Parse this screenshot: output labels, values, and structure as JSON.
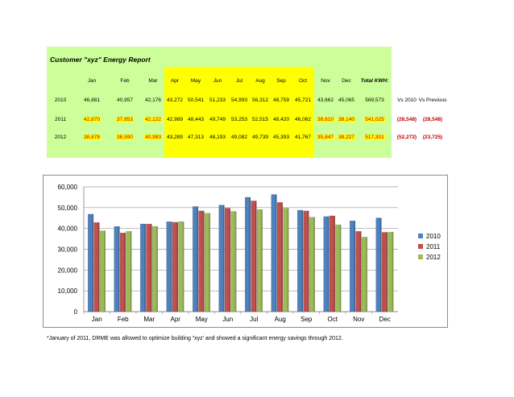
{
  "report": {
    "title": "Customer \"xyz\" Energy Report",
    "months": [
      "Jan",
      "Feb",
      "Mar",
      "Apr",
      "May",
      "Jun",
      "Jul",
      "Aug",
      "Sep",
      "Oct",
      "Nov",
      "Dec"
    ],
    "total_header": "Total KWH:",
    "rows": [
      {
        "year": "2010",
        "values": [
          "46,881",
          "40,957",
          "42,176",
          "43,272",
          "50,541",
          "51,233",
          "54,993",
          "56,312",
          "48,759",
          "45,721",
          "43,662",
          "45,065"
        ],
        "total": "569,573",
        "extra1": "Vs 2010",
        "extra2": "Vs Previous"
      },
      {
        "year": "2011",
        "values": [
          "42,870",
          "37,853",
          "42,122",
          "42,989",
          "48,443",
          "49,749",
          "53,253",
          "52,515",
          "48,420",
          "46,062",
          "38,610",
          "38,140"
        ],
        "total": "541,025",
        "extra1": "(28,548)",
        "extra2": "(28,548)"
      },
      {
        "year": "2012",
        "values": [
          "38,878",
          "38,590",
          "40,983",
          "43,289",
          "47,313",
          "48,193",
          "49,082",
          "49,739",
          "45,393",
          "41,767",
          "35,847",
          "38,227"
        ],
        "total": "517,301",
        "extra1": "(52,272)",
        "extra2": "(23,725)"
      }
    ]
  },
  "colors": {
    "s2010": "#4f81bd",
    "s2011": "#c0504d",
    "s2012": "#9bbb59",
    "panel_green": "#ccff99",
    "panel_yellow": "#ffff00",
    "negative": "#c00000"
  },
  "chart_data": {
    "type": "bar",
    "categories": [
      "Jan",
      "Feb",
      "Mar",
      "Apr",
      "May",
      "Jun",
      "Jul",
      "Aug",
      "Sep",
      "Oct",
      "Nov",
      "Dec"
    ],
    "series": [
      {
        "name": "2010",
        "values": [
          46881,
          40957,
          42176,
          43272,
          50541,
          51233,
          54993,
          56312,
          48759,
          45721,
          43662,
          45065
        ]
      },
      {
        "name": "2011",
        "values": [
          42870,
          37853,
          42122,
          42989,
          48443,
          49749,
          53253,
          52515,
          48420,
          46062,
          38610,
          38140
        ]
      },
      {
        "name": "2012",
        "values": [
          38878,
          38590,
          40983,
          43289,
          47313,
          48193,
          49082,
          49739,
          45393,
          41767,
          35847,
          38227
        ]
      }
    ],
    "ylim": [
      0,
      60000
    ],
    "yticks": [
      "0",
      "10,000",
      "20,000",
      "30,000",
      "40,000",
      "50,000",
      "60,000"
    ],
    "grid": true,
    "legend_position": "right"
  },
  "footnote": "*January of 2011, DRME was allowed to optimize building “xyz’ and showed a significant energy savings through 2012."
}
